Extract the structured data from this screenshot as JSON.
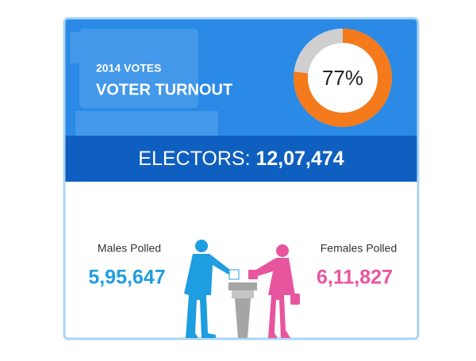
{
  "header": {
    "subtitle": "2014 VOTES",
    "title": "VOTER TURNOUT"
  },
  "turnout": {
    "value": 77,
    "label": "77%"
  },
  "electors": {
    "label": "ELECTORS:",
    "value": "12,07,474"
  },
  "males": {
    "label": "Males Polled",
    "value": "5,95,647"
  },
  "females": {
    "label": "Females Polled",
    "value": "6,11,827"
  }
}
